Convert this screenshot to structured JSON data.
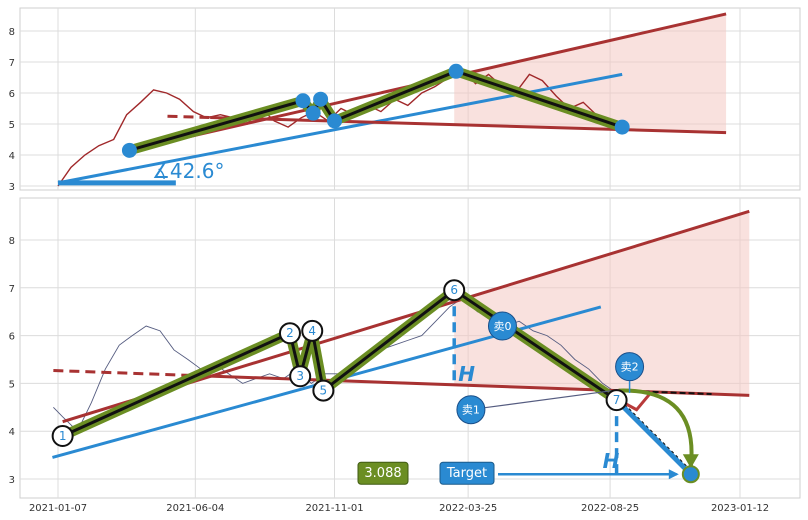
{
  "chart_data": [
    {
      "type": "line",
      "panel": "top",
      "ylim": [
        2.9,
        8.5
      ],
      "yticks": [
        "3",
        "4",
        "5",
        "6",
        "7",
        "8"
      ],
      "grid": true,
      "price_series": {
        "color": "#a0282a",
        "x": [
          "2021-01-07",
          "2021-01-21",
          "2021-02-05",
          "2021-02-20",
          "2021-03-08",
          "2021-03-22",
          "2021-04-06",
          "2021-04-20",
          "2021-05-04",
          "2021-05-18",
          "2021-06-02",
          "2021-06-16",
          "2021-07-01",
          "2021-07-15",
          "2021-07-30",
          "2021-08-14",
          "2021-08-28",
          "2021-09-12",
          "2021-09-26",
          "2021-10-10",
          "2021-10-25",
          "2021-11-08",
          "2021-11-22",
          "2021-12-07",
          "2021-12-21",
          "2022-01-05",
          "2022-01-19",
          "2022-02-03",
          "2022-02-17",
          "2022-03-04",
          "2022-03-18",
          "2022-04-02",
          "2022-04-16",
          "2022-05-01",
          "2022-05-15",
          "2022-05-30",
          "2022-06-13",
          "2022-06-28",
          "2022-07-12",
          "2022-07-27",
          "2022-08-10",
          "2022-08-24",
          "2022-09-07",
          "2022-09-15"
        ],
        "y": [
          3.0,
          3.6,
          4.0,
          4.3,
          4.5,
          5.3,
          5.7,
          6.1,
          6.0,
          5.8,
          5.4,
          5.2,
          5.3,
          5.2,
          5.0,
          5.5,
          5.1,
          4.9,
          5.2,
          5.4,
          5.1,
          5.5,
          5.3,
          5.6,
          5.4,
          5.8,
          5.6,
          6.0,
          6.2,
          6.5,
          6.8,
          6.3,
          6.6,
          6.2,
          6.0,
          6.6,
          6.4,
          5.9,
          5.5,
          5.7,
          5.3,
          5.1,
          4.9,
          4.8
        ]
      },
      "pattern_points": {
        "x": [
          "2021-03-25",
          "2021-09-28",
          "2021-10-09",
          "2021-10-17",
          "2021-11-01",
          "2022-03-12",
          "2022-09-07"
        ],
        "y": [
          4.15,
          5.75,
          5.35,
          5.8,
          5.1,
          6.7,
          4.9
        ]
      },
      "upper_trendline": {
        "x": [
          "2021-03-25",
          "2022-12-28"
        ],
        "y": [
          4.15,
          8.55
        ]
      },
      "lower_trendline": {
        "x": [
          "2021-05-05",
          "2022-12-28"
        ],
        "y": [
          5.25,
          4.72
        ]
      },
      "angle_line": {
        "x": [
          "2021-01-07",
          "2022-09-07"
        ],
        "y": [
          3.1,
          6.6
        ]
      },
      "baseline": {
        "x": [
          "2021-01-07",
          "2021-05-14"
        ],
        "y": [
          3.1,
          3.1
        ]
      },
      "angle_label": "∡42.6°"
    },
    {
      "type": "line",
      "panel": "bottom",
      "xlabels": [
        "2021-01-07",
        "2021-06-04",
        "2021-11-01",
        "2022-03-25",
        "2022-08-25",
        "2023-01-12"
      ],
      "ylim": [
        2.75,
        8.75
      ],
      "yticks": [
        "3",
        "4",
        "5",
        "6",
        "7",
        "8"
      ],
      "grid": true,
      "price_series": {
        "color": "#555c80",
        "x": [
          "2021-01-02",
          "2021-01-12",
          "2021-01-28",
          "2021-02-12",
          "2021-02-27",
          "2021-03-14",
          "2021-03-28",
          "2021-04-12",
          "2021-04-27",
          "2021-05-12",
          "2021-05-27",
          "2021-06-10",
          "2021-06-25",
          "2021-07-10",
          "2021-07-25",
          "2021-08-08",
          "2021-08-23",
          "2021-09-07",
          "2021-09-22",
          "2021-10-07",
          "2021-10-22",
          "2021-11-05",
          "2021-11-20",
          "2021-12-05",
          "2021-12-20",
          "2022-01-04",
          "2022-01-19",
          "2022-02-03",
          "2022-02-18",
          "2022-03-05",
          "2022-03-20",
          "2022-04-04",
          "2022-04-19",
          "2022-05-04",
          "2022-05-19",
          "2022-06-03",
          "2022-06-18",
          "2022-07-03",
          "2022-07-18",
          "2022-08-02",
          "2022-08-17",
          "2022-09-01"
        ],
        "y": [
          4.5,
          4.3,
          4.0,
          4.6,
          5.3,
          5.8,
          6.0,
          6.2,
          6.1,
          5.7,
          5.5,
          5.3,
          5.4,
          5.2,
          5.0,
          5.1,
          5.2,
          5.1,
          5.3,
          5.0,
          5.2,
          5.2,
          5.4,
          5.5,
          5.7,
          5.8,
          5.9,
          6.0,
          6.3,
          6.6,
          6.8,
          6.5,
          6.4,
          6.2,
          6.3,
          6.1,
          6.0,
          5.8,
          5.5,
          5.3,
          5.0,
          4.8
        ]
      },
      "pattern_points": {
        "labels": [
          "1",
          "2",
          "3",
          "4",
          "5",
          "6",
          "7"
        ],
        "x": [
          "2021-01-12",
          "2021-09-14",
          "2021-09-25",
          "2021-10-08",
          "2021-10-20",
          "2022-03-10",
          "2022-09-01"
        ],
        "y": [
          3.9,
          6.05,
          5.15,
          6.1,
          4.85,
          6.95,
          4.65
        ]
      },
      "upper_trendline": {
        "x": [
          "2021-01-12",
          "2023-01-22"
        ],
        "y": [
          4.2,
          8.6
        ]
      },
      "lower_trendline": {
        "x": [
          "2021-01-02",
          "2023-01-22"
        ],
        "y": [
          5.27,
          4.75
        ]
      },
      "angle_line": {
        "x": [
          "2021-01-01",
          "2022-08-15"
        ],
        "y": [
          3.45,
          6.6
        ]
      },
      "target": {
        "date": "2022-11-20",
        "value": 3.1
      },
      "sell_markers": [
        {
          "label": "卖0",
          "x": "2022-05-01",
          "y": 6.2
        },
        {
          "label": "卖1",
          "x": "2022-03-28",
          "y": 4.45
        },
        {
          "label": "卖2",
          "x": "2022-09-15",
          "y": 5.35
        }
      ],
      "h_label": "H",
      "target_label": "Target",
      "target_value_label": "3.088"
    }
  ]
}
